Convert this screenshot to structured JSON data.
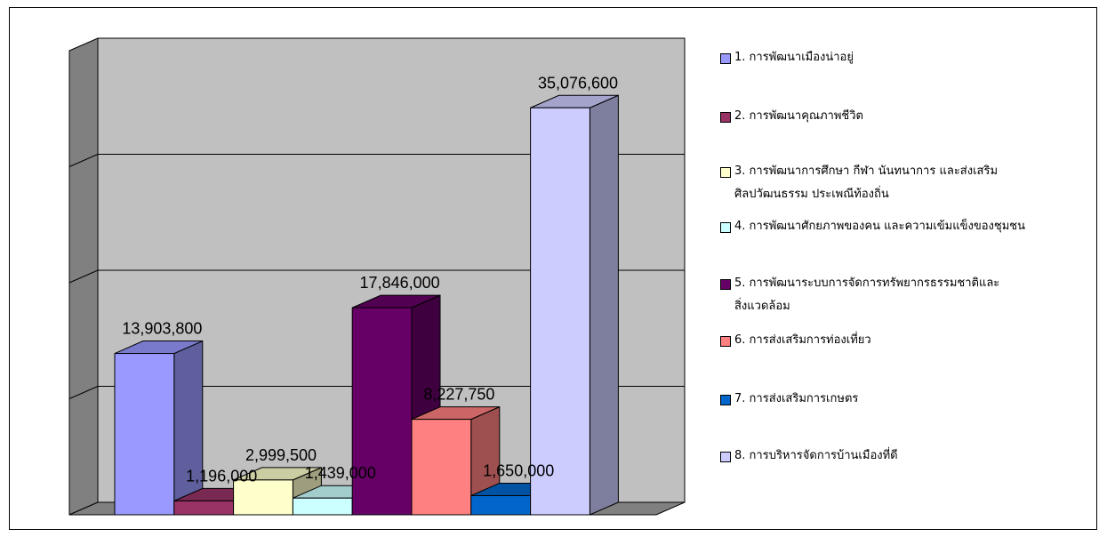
{
  "chart_data": {
    "type": "bar",
    "three_d": true,
    "ylim": [
      0,
      40000000
    ],
    "grid": true,
    "legend_position": "right",
    "categories": [
      "1. การพัฒนาเมืองน่าอยู่",
      "2. การพัฒนาคุณภาพชีวิต",
      "3. การพัฒนาการศึกษา กีฬา นันทนาการ และส่งเสริม\nศิลปวัฒนธรรม ประเพณีท้องถิ่น",
      "4. การพัฒนาศักยภาพของคน และความเข้มแข็งของชุมชน",
      "5. การพัฒนาระบบการจัดการทรัพยากรธรรมชาติและ\nสิ่งแวดล้อม",
      "6. การส่งเสริมการท่องเที่ยว",
      "7. การส่งเสริมการเกษตร",
      "8. การบริหารจัดการบ้านเมืองที่ดี"
    ],
    "values": [
      13903800,
      1196000,
      2999500,
      1439000,
      17846000,
      8227750,
      1650000,
      35076600
    ],
    "value_labels": [
      "13,903,800",
      "1,196,000",
      "2,999,500",
      "1,439,000",
      "17,846,000",
      "8,227,750",
      "1,650,000",
      "35,076,600"
    ],
    "colors": [
      "#9999FF",
      "#993366",
      "#FFFFCC",
      "#CCFFFF",
      "#660066",
      "#FF8080",
      "#0066CC",
      "#CCCCFF"
    ]
  }
}
